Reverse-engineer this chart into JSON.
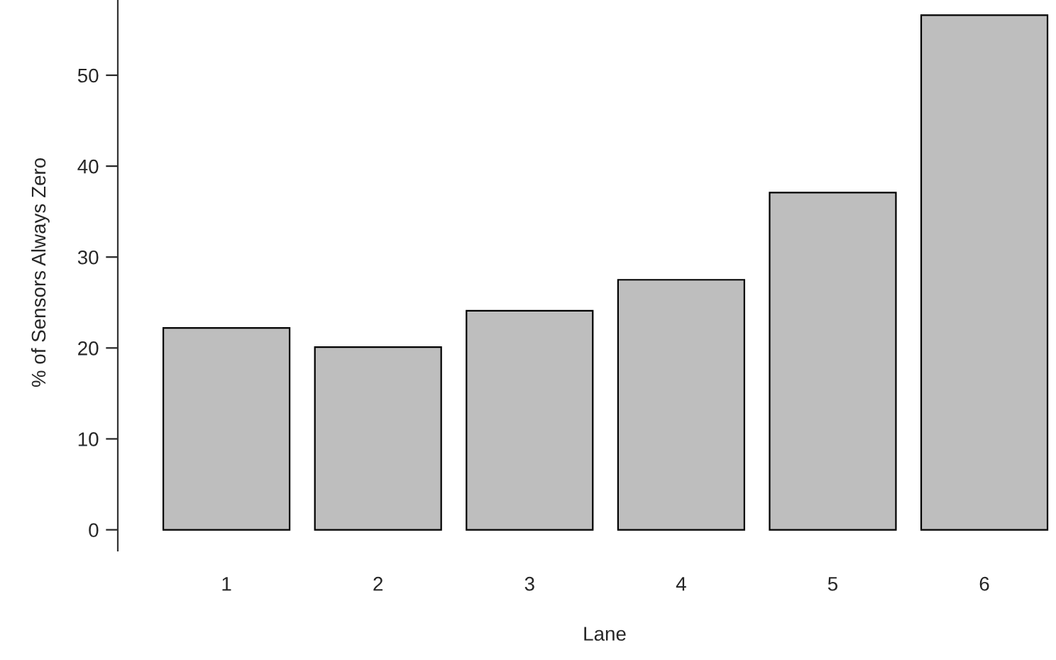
{
  "chart_data": {
    "type": "bar",
    "xlabel": "Lane",
    "ylabel": "% of Sensors Always Zero",
    "categories": [
      "1",
      "2",
      "3",
      "4",
      "5",
      "6"
    ],
    "values": [
      22.2,
      20.1,
      24.1,
      27.5,
      37.1,
      56.6
    ],
    "color": "#bebebe",
    "ylim": [
      -2.3,
      58.9
    ],
    "yticks": [
      0,
      10,
      20,
      30,
      40,
      50
    ],
    "grid": false
  }
}
